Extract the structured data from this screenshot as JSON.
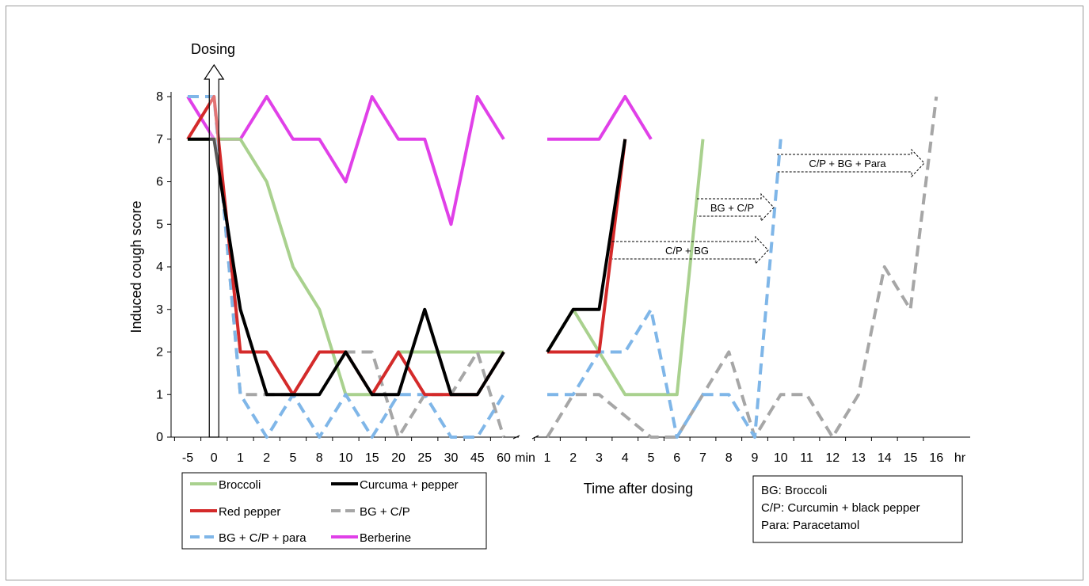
{
  "chart_data": {
    "type": "line",
    "title": "",
    "ylabel": "Induced cough score",
    "xlabel": "Time after dosing",
    "ylim": [
      0,
      8
    ],
    "yticks": [
      "0",
      "1",
      "2",
      "3",
      "4",
      "5",
      "6",
      "7",
      "8"
    ],
    "x_minutes": [
      "-5",
      "0",
      "1",
      "2",
      "5",
      "8",
      "10",
      "15",
      "20",
      "25",
      "30",
      "45",
      "60"
    ],
    "x_minutes_unit": "min",
    "x_hours": [
      "1",
      "2",
      "3",
      "4",
      "5",
      "6",
      "7",
      "8",
      "9",
      "10",
      "11",
      "12",
      "13",
      "14",
      "15",
      "16"
    ],
    "x_hours_unit": "hr",
    "dosing_label": "Dosing",
    "series": [
      {
        "name": "Broccoli",
        "color": "#a9d18e",
        "dash": false,
        "minutes": [
          7,
          7,
          7,
          6,
          4,
          3,
          1,
          1,
          2,
          2,
          2,
          2,
          2
        ],
        "hours": [
          2,
          3,
          2,
          1,
          1,
          1,
          7,
          null,
          null,
          null,
          null,
          null,
          null,
          null,
          null,
          null
        ]
      },
      {
        "name": "Curcuma + pepper",
        "color": "#000000",
        "dash": false,
        "minutes": [
          7,
          7,
          3,
          1,
          1,
          1,
          2,
          1,
          1,
          3,
          1,
          1,
          2
        ],
        "hours": [
          2,
          3,
          3,
          7,
          null,
          null,
          null,
          null,
          null,
          null,
          null,
          null,
          null,
          null,
          null,
          null
        ]
      },
      {
        "name": "Red pepper",
        "color": "#d42a2a",
        "dash": false,
        "minutes": [
          7,
          8,
          2,
          2,
          1,
          2,
          2,
          1,
          2,
          1,
          1,
          1,
          2
        ],
        "hours": [
          2,
          2,
          2,
          7,
          null,
          null,
          null,
          null,
          null,
          null,
          null,
          null,
          null,
          null,
          null,
          null
        ]
      },
      {
        "name": "BG + C/P",
        "color": "#a6a6a6",
        "dash": true,
        "minutes": [
          8,
          8,
          1,
          1,
          1,
          2,
          2,
          2,
          0,
          1,
          1,
          2,
          0
        ],
        "hours": [
          0,
          1,
          1,
          0.5,
          0,
          0,
          1,
          2,
          0,
          1,
          1,
          0,
          1,
          4,
          3,
          8
        ]
      },
      {
        "name": "BG + C/P + para",
        "color": "#7fb6e8",
        "dash": true,
        "minutes": [
          8,
          8,
          1,
          0,
          1,
          0,
          1,
          0,
          1,
          1,
          0,
          0,
          1
        ],
        "hours": [
          1,
          1,
          2,
          2,
          3,
          0,
          1,
          1,
          0,
          7,
          null,
          null,
          null,
          null,
          null,
          null
        ]
      },
      {
        "name": "Berberine",
        "color": "#e040e8",
        "dash": false,
        "minutes": [
          8,
          7,
          7,
          8,
          7,
          7,
          6,
          8,
          7,
          7,
          5,
          8,
          7
        ],
        "hours": [
          7,
          7,
          7,
          8,
          7,
          null,
          null,
          null,
          null,
          null,
          null,
          null,
          null,
          null,
          null,
          null
        ]
      }
    ],
    "annotations": [
      "C/P + BG",
      "BG + C/P",
      "C/P + BG + Para"
    ],
    "legend_placement": "bottom-left",
    "abbreviations": [
      "BG: Broccoli",
      "C/P: Curcumin + black pepper",
      "Para: Paracetamol"
    ]
  }
}
